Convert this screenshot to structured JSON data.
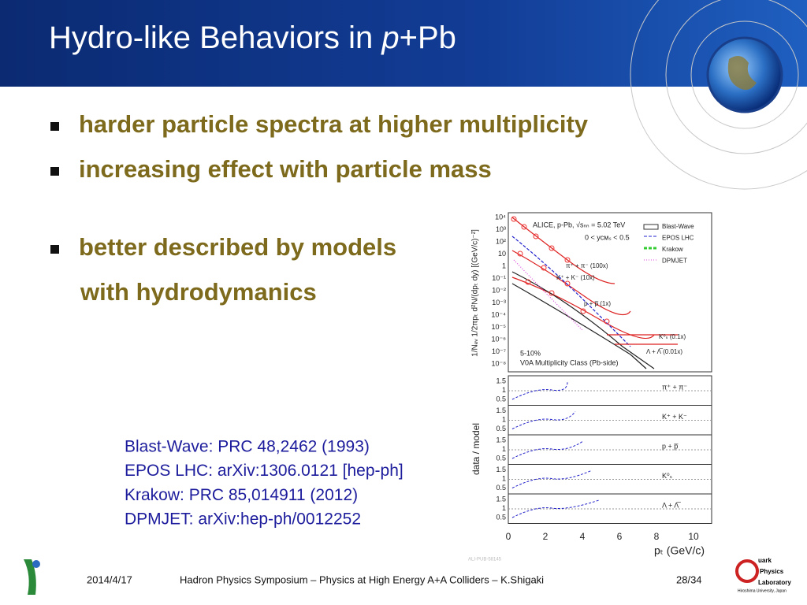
{
  "header": {
    "title_parts": [
      "Hydro-like Behaviors in ",
      "p",
      "+Pb"
    ]
  },
  "bullets": [
    "harder particle spectra at higher multiplicity",
    "increasing effect with particle mass",
    "better described by models",
    "with hydrodymanics"
  ],
  "references": [
    "Blast-Wave: PRC 48,2462 (1993)",
    "EPOS LHC: arXiv:1306.0121 [hep-ph]",
    "Krakow: PRC 85,014911 (2012)",
    "DPMJET: arXiv:hep-ph/0012252"
  ],
  "figure": {
    "y_label": "1/Nₑᵥ 1/2πpₜ d²N/(dpₜ dy) [(GeV/c)⁻²]",
    "ratio_label": "data / model",
    "x_label": "pₜ (GeV/c)",
    "yticks": [
      "10⁴",
      "10³",
      "10²",
      "10",
      "1",
      "10⁻¹",
      "10⁻²",
      "10⁻³",
      "10⁻⁴",
      "10⁻⁵",
      "10⁻⁶",
      "10⁻⁷",
      "10⁻⁸"
    ],
    "ratio_ticks": [
      "1.5",
      "1",
      "0.5"
    ],
    "xticks": [
      "0",
      "2",
      "4",
      "6",
      "8",
      "10"
    ],
    "annotations": [
      "ALICE, p-Pb, √sₙₙ = 5.02 TeV",
      "0 < yᴄᴍₛ < 0.5",
      "5-10%",
      "V0A Multiplicity Class (Pb-side)"
    ],
    "legend": [
      "Blast-Wave",
      "EPOS LHC",
      "Krakow",
      "DPMJET"
    ],
    "species": [
      "π⁺ + π⁻ (100x)",
      "K⁺ + K⁻ (10x)",
      "p + p̅ (1x)",
      "K⁰ₛ (0.1x)",
      "Λ + Λ̅ (0.01x)"
    ],
    "ratio_species": [
      "π⁺ + π⁻",
      "K⁺ + K⁻",
      "p + p̅",
      "K⁰ₛ",
      "Λ + Λ̅"
    ],
    "id": "ALI-PUB-58145"
  },
  "footer": {
    "date": "2014/4/17",
    "center": "Hadron Physics Symposium – Physics at High Energy A+A Colliders – K.Shigaki",
    "page": "28/34"
  },
  "logo": [
    "uark",
    "Physics",
    "Laboratory",
    "Hiroshima University, Japan"
  ]
}
